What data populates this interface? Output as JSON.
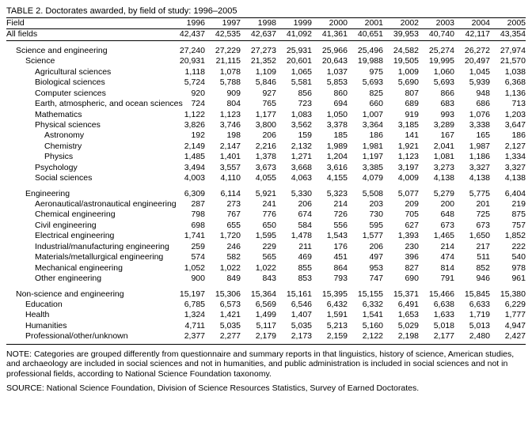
{
  "title": "TABLE 2.  Doctorates awarded, by field of study: 1996–2005",
  "header_field": "Field",
  "years": [
    "1996",
    "1997",
    "1998",
    "1999",
    "2000",
    "2001",
    "2002",
    "2003",
    "2004",
    "2005"
  ],
  "rows": [
    {
      "label": "All fields",
      "indent": 0,
      "class": "allfields",
      "vals": [
        "42,437",
        "42,535",
        "42,637",
        "41,092",
        "41,361",
        "40,651",
        "39,953",
        "40,740",
        "42,117",
        "43,354"
      ]
    },
    {
      "spacer": true
    },
    {
      "label": "Science and engineering",
      "indent": 1,
      "vals": [
        "27,240",
        "27,229",
        "27,273",
        "25,931",
        "25,966",
        "25,496",
        "24,582",
        "25,274",
        "26,272",
        "27,974"
      ]
    },
    {
      "label": "Science",
      "indent": 2,
      "vals": [
        "20,931",
        "21,115",
        "21,352",
        "20,601",
        "20,643",
        "19,988",
        "19,505",
        "19,995",
        "20,497",
        "21,570"
      ]
    },
    {
      "label": "Agricultural sciences",
      "indent": 3,
      "vals": [
        "1,118",
        "1,078",
        "1,109",
        "1,065",
        "1,037",
        "975",
        "1,009",
        "1,060",
        "1,045",
        "1,038"
      ]
    },
    {
      "label": "Biological sciences",
      "indent": 3,
      "vals": [
        "5,724",
        "5,788",
        "5,846",
        "5,581",
        "5,853",
        "5,693",
        "5,690",
        "5,693",
        "5,939",
        "6,368"
      ]
    },
    {
      "label": "Computer sciences",
      "indent": 3,
      "vals": [
        "920",
        "909",
        "927",
        "856",
        "860",
        "825",
        "807",
        "866",
        "948",
        "1,136"
      ]
    },
    {
      "label": "Earth, atmospheric, and ocean sciences",
      "indent": 3,
      "vals": [
        "724",
        "804",
        "765",
        "723",
        "694",
        "660",
        "689",
        "683",
        "686",
        "713"
      ]
    },
    {
      "label": "Mathematics",
      "indent": 3,
      "vals": [
        "1,122",
        "1,123",
        "1,177",
        "1,083",
        "1,050",
        "1,007",
        "919",
        "993",
        "1,076",
        "1,203"
      ]
    },
    {
      "label": "Physical sciences",
      "indent": 3,
      "vals": [
        "3,826",
        "3,746",
        "3,800",
        "3,562",
        "3,378",
        "3,364",
        "3,185",
        "3,289",
        "3,338",
        "3,647"
      ]
    },
    {
      "label": "Astronomy",
      "indent": 4,
      "vals": [
        "192",
        "198",
        "206",
        "159",
        "185",
        "186",
        "141",
        "167",
        "165",
        "186"
      ]
    },
    {
      "label": "Chemistry",
      "indent": 4,
      "vals": [
        "2,149",
        "2,147",
        "2,216",
        "2,132",
        "1,989",
        "1,981",
        "1,921",
        "2,041",
        "1,987",
        "2,127"
      ]
    },
    {
      "label": "Physics",
      "indent": 4,
      "vals": [
        "1,485",
        "1,401",
        "1,378",
        "1,271",
        "1,204",
        "1,197",
        "1,123",
        "1,081",
        "1,186",
        "1,334"
      ]
    },
    {
      "label": "Psychology",
      "indent": 3,
      "vals": [
        "3,494",
        "3,557",
        "3,673",
        "3,668",
        "3,616",
        "3,385",
        "3,197",
        "3,273",
        "3,327",
        "3,327"
      ]
    },
    {
      "label": "Social sciences",
      "indent": 3,
      "vals": [
        "4,003",
        "4,110",
        "4,055",
        "4,063",
        "4,155",
        "4,079",
        "4,009",
        "4,138",
        "4,138",
        "4,138"
      ]
    },
    {
      "spacer": true
    },
    {
      "label": "Engineering",
      "indent": 2,
      "vals": [
        "6,309",
        "6,114",
        "5,921",
        "5,330",
        "5,323",
        "5,508",
        "5,077",
        "5,279",
        "5,775",
        "6,404"
      ]
    },
    {
      "label": "Aeronautical/astronautical engineering",
      "indent": 3,
      "vals": [
        "287",
        "273",
        "241",
        "206",
        "214",
        "203",
        "209",
        "200",
        "201",
        "219"
      ]
    },
    {
      "label": "Chemical engineering",
      "indent": 3,
      "vals": [
        "798",
        "767",
        "776",
        "674",
        "726",
        "730",
        "705",
        "648",
        "725",
        "875"
      ]
    },
    {
      "label": "Civil engineering",
      "indent": 3,
      "vals": [
        "698",
        "655",
        "650",
        "584",
        "556",
        "595",
        "627",
        "673",
        "673",
        "757"
      ]
    },
    {
      "label": "Electrical engineering",
      "indent": 3,
      "vals": [
        "1,741",
        "1,720",
        "1,595",
        "1,478",
        "1,543",
        "1,577",
        "1,393",
        "1,465",
        "1,650",
        "1,852"
      ]
    },
    {
      "label": "Industrial/manufacturing engineering",
      "indent": 3,
      "vals": [
        "259",
        "246",
        "229",
        "211",
        "176",
        "206",
        "230",
        "214",
        "217",
        "222"
      ]
    },
    {
      "label": "Materials/metallurgical engineering",
      "indent": 3,
      "vals": [
        "574",
        "582",
        "565",
        "469",
        "451",
        "497",
        "396",
        "474",
        "511",
        "540"
      ]
    },
    {
      "label": "Mechanical engineering",
      "indent": 3,
      "vals": [
        "1,052",
        "1,022",
        "1,022",
        "855",
        "864",
        "953",
        "827",
        "814",
        "852",
        "978"
      ]
    },
    {
      "label": "Other engineering",
      "indent": 3,
      "vals": [
        "900",
        "849",
        "843",
        "853",
        "793",
        "747",
        "690",
        "791",
        "946",
        "961"
      ]
    },
    {
      "spacer": true
    },
    {
      "label": "Non-science and engineering",
      "indent": 1,
      "vals": [
        "15,197",
        "15,306",
        "15,364",
        "15,161",
        "15,395",
        "15,155",
        "15,371",
        "15,466",
        "15,845",
        "15,380"
      ]
    },
    {
      "label": "Education",
      "indent": 2,
      "vals": [
        "6,785",
        "6,573",
        "6,569",
        "6,546",
        "6,432",
        "6,332",
        "6,491",
        "6,638",
        "6,633",
        "6,229"
      ]
    },
    {
      "label": "Health",
      "indent": 2,
      "vals": [
        "1,324",
        "1,421",
        "1,499",
        "1,407",
        "1,591",
        "1,541",
        "1,653",
        "1,633",
        "1,719",
        "1,777"
      ]
    },
    {
      "label": "Humanities",
      "indent": 2,
      "vals": [
        "4,711",
        "5,035",
        "5,117",
        "5,035",
        "5,213",
        "5,160",
        "5,029",
        "5,018",
        "5,013",
        "4,947"
      ]
    },
    {
      "label": "Professional/other/unknown",
      "indent": 2,
      "vals": [
        "2,377",
        "2,277",
        "2,179",
        "2,173",
        "2,159",
        "2,122",
        "2,198",
        "2,177",
        "2,480",
        "2,427"
      ]
    }
  ],
  "note": "NOTE:  Categories are grouped differently from questionnaire and summary reports in that linguistics, history of science, American studies, and archaeology are included in social sciences and not in humanities, and public administration is included in social sciences and not in professional fields, according to National Science Foundation taxonomy.",
  "source": "SOURCE:  National Science Foundation, Division of Science Resources Statistics, Survey of Earned Doctorates."
}
